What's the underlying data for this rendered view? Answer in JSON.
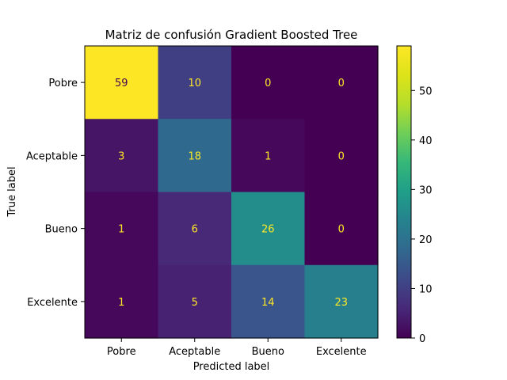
{
  "chart_data": {
    "type": "heatmap",
    "title": "Matriz de confusión Gradient Boosted Tree",
    "xlabel": "Predicted label",
    "ylabel": "True label",
    "x_categories": [
      "Pobre",
      "Aceptable",
      "Bueno",
      "Excelente"
    ],
    "y_categories": [
      "Pobre",
      "Aceptable",
      "Bueno",
      "Excelente"
    ],
    "matrix": [
      [
        59,
        10,
        0,
        0
      ],
      [
        3,
        18,
        1,
        0
      ],
      [
        1,
        6,
        26,
        0
      ],
      [
        1,
        5,
        14,
        23
      ]
    ],
    "colormap": "viridis",
    "vmin": 0,
    "vmax": 59,
    "colorbar_ticks": [
      0,
      10,
      20,
      30,
      40,
      50
    ],
    "text_color_on_dark": "#fde725",
    "text_color_on_light": "#440154"
  }
}
